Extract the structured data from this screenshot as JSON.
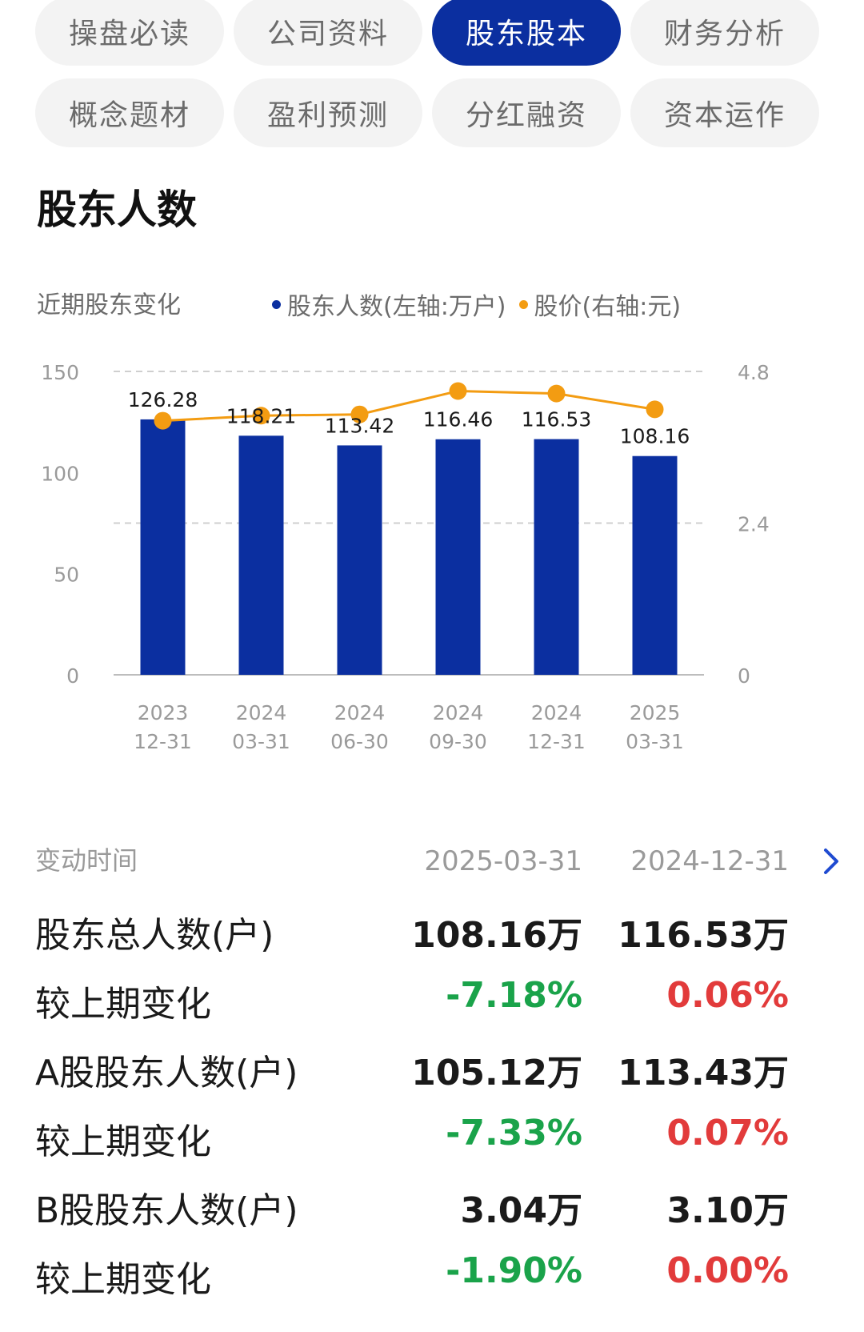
{
  "tabs": {
    "row1": [
      "操盘必读",
      "公司资料",
      "股东股本",
      "财务分析"
    ],
    "row2": [
      "概念题材",
      "盈利预测",
      "分红融资",
      "资本运作"
    ],
    "active": "股东股本"
  },
  "section": {
    "title": "股东人数"
  },
  "chart_header": {
    "subtitle": "近期股东变化",
    "legend_holders": "股东人数(左轴:万户)",
    "legend_price": "股价(右轴:元)"
  },
  "colors": {
    "accent": "#0b2fa0",
    "bar": "#0b2fa0",
    "price_line": "#f39c12",
    "down": "#1aa34a",
    "up": "#e23b3b"
  },
  "chart_data": {
    "type": "bar",
    "categories": [
      "2023\n12-31",
      "2024\n03-31",
      "2024\n06-30",
      "2024\n09-30",
      "2024\n12-31",
      "2025\n03-31"
    ],
    "series": [
      {
        "name": "股东人数(左轴:万户)",
        "type": "bar",
        "axis": "left",
        "values": [
          126.28,
          118.21,
          113.42,
          116.46,
          116.53,
          108.16
        ]
      },
      {
        "name": "股价(右轴:元)",
        "type": "line",
        "axis": "right",
        "values": [
          4.02,
          4.1,
          4.12,
          4.49,
          4.45,
          4.2
        ]
      }
    ],
    "ylim": [
      0,
      150
    ],
    "y_ticks": [
      "150",
      "100",
      "50",
      "0"
    ],
    "y2lim": [
      0,
      4.8
    ],
    "y2_ticks": [
      "4.8",
      "2.4",
      "0"
    ],
    "grid": true
  },
  "table": {
    "header_label": "变动时间",
    "col1": "2025-03-31",
    "col2": "2024-12-31",
    "rows": [
      {
        "label": "股东总人数(户)",
        "v1": "108.16万",
        "v2": "116.53万"
      },
      {
        "label": "较上期变化",
        "v1": "-7.18%",
        "v2": "0.06%"
      },
      {
        "label": "A股股东人数(户)",
        "v1": "105.12万",
        "v2": "113.43万"
      },
      {
        "label": "较上期变化",
        "v1": "-7.33%",
        "v2": "0.07%"
      },
      {
        "label": "B股股东人数(户)",
        "v1": "3.04万",
        "v2": "3.10万"
      },
      {
        "label": "较上期变化",
        "v1": "-1.90%",
        "v2": "0.00%"
      }
    ]
  }
}
